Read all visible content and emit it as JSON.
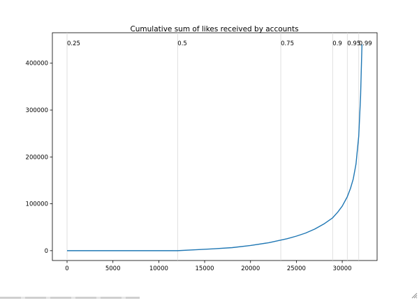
{
  "chart_data": {
    "type": "line",
    "title": "Cumulative sum of likes received by accounts",
    "xlabel": "",
    "ylabel": "",
    "xlim": [
      -1600,
      33800
    ],
    "ylim": [
      -21000,
      465000
    ],
    "xticks": [
      0,
      5000,
      10000,
      15000,
      20000,
      25000,
      30000
    ],
    "yticks": [
      0,
      100000,
      200000,
      300000,
      400000
    ],
    "xtick_labels": [
      "0",
      "5000",
      "10000",
      "15000",
      "20000",
      "25000",
      "30000"
    ],
    "ytick_labels": [
      "0",
      "100000",
      "200000",
      "300000",
      "400000"
    ],
    "quantiles": [
      {
        "label": "0.25",
        "x": 0
      },
      {
        "label": "0.5",
        "x": 12050
      },
      {
        "label": "0.75",
        "x": 23300
      },
      {
        "label": "0.9",
        "x": 28950
      },
      {
        "label": "0.95",
        "x": 30550
      },
      {
        "label": "0.99",
        "x": 31800
      }
    ],
    "series": [
      {
        "color": "#1f77b4",
        "x": [
          0,
          5000,
          10000,
          12050,
          14000,
          16000,
          18000,
          20000,
          22000,
          24000,
          25000,
          26000,
          27000,
          28000,
          28950,
          29500,
          30000,
          30550,
          30900,
          31200,
          31500,
          31800,
          32000,
          32150
        ],
        "y": [
          0,
          0,
          0,
          0,
          2000,
          4000,
          6500,
          11000,
          17000,
          25500,
          31000,
          37500,
          46000,
          57000,
          70000,
          82000,
          95000,
          115000,
          133000,
          153000,
          185000,
          245000,
          330000,
          440000
        ]
      }
    ],
    "grid": false,
    "legend": "none"
  }
}
